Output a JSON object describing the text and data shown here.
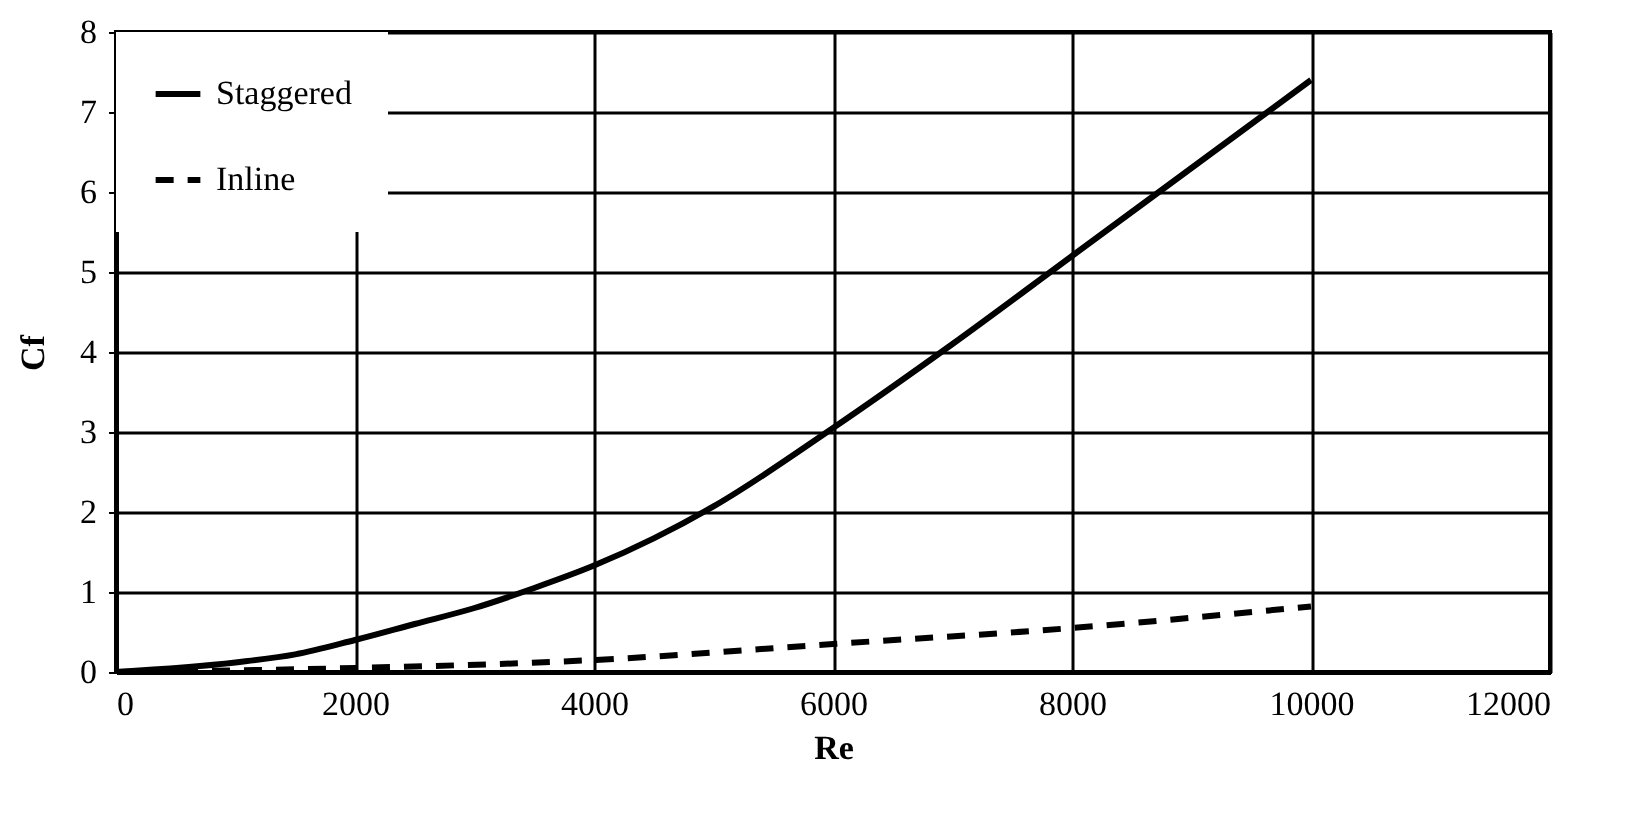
{
  "chart_data": {
    "type": "line",
    "xlabel": "Re",
    "ylabel": "Cf",
    "xlim": [
      0,
      12000
    ],
    "xticks": [
      0,
      2000,
      4000,
      6000,
      8000,
      10000,
      12000
    ],
    "ylim": [
      0,
      8
    ],
    "yticks": [
      0,
      1,
      2,
      3,
      4,
      5,
      6,
      7,
      8
    ],
    "grid": true,
    "legend": "top left",
    "series": [
      {
        "name": "Staggered",
        "color": "#000000",
        "line_style": "solid",
        "x": [
          0,
          1000,
          1500,
          2000,
          2500,
          3000,
          3500,
          4000,
          4500,
          5000,
          6000,
          7000,
          8000,
          9000,
          10000
        ],
        "values": [
          0,
          0.12,
          0.22,
          0.4,
          0.6,
          0.8,
          1.05,
          1.33,
          1.67,
          2.07,
          3.05,
          4.1,
          5.2,
          6.3,
          7.4
        ]
      },
      {
        "name": "Inline",
        "color": "#000000",
        "line_style": "dashed",
        "x": [
          0,
          2000,
          4000,
          6000,
          8000,
          10000
        ],
        "values": [
          0,
          0.05,
          0.15,
          0.35,
          0.55,
          0.82
        ]
      }
    ]
  }
}
